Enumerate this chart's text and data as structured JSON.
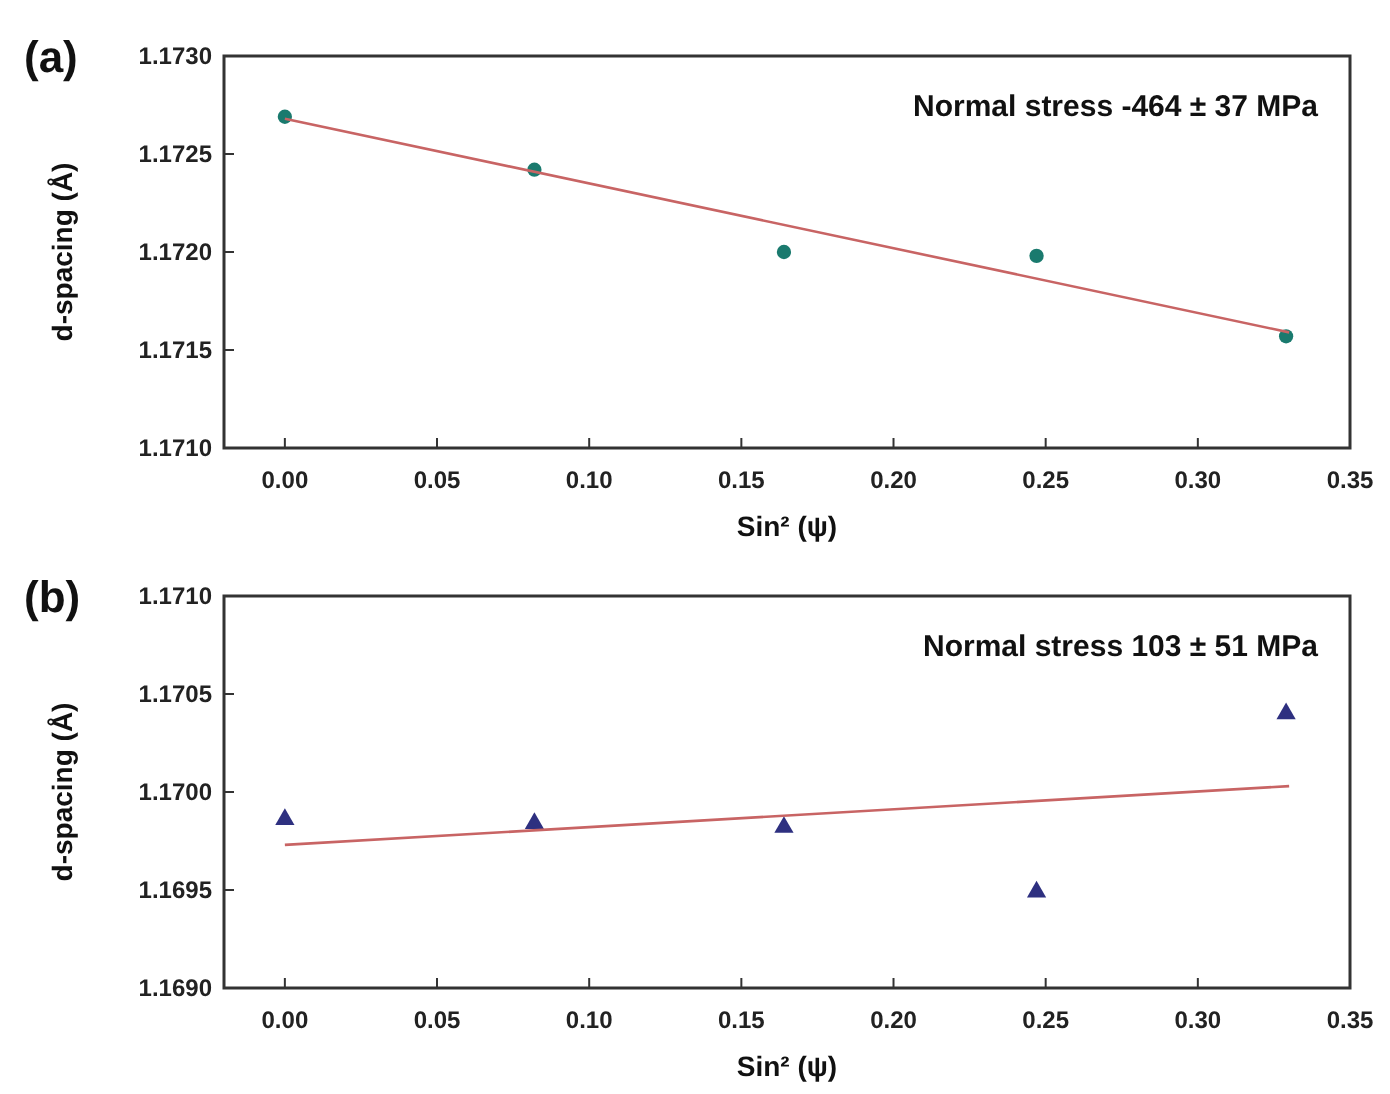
{
  "chart_data": [
    {
      "type": "scatter",
      "title": "(a)",
      "xlabel": "Sin² (ψ)",
      "ylabel": "d-spacing (Å)",
      "annotations": [
        "Normal stress -464 ± 37 MPa"
      ],
      "xlim": [
        -0.02,
        0.35
      ],
      "xticks": [
        {
          "value": 0,
          "label": "0.00"
        },
        {
          "value": 0.05,
          "label": "0.05"
        },
        {
          "value": 0.1,
          "label": "0.10"
        },
        {
          "value": 0.15,
          "label": "0.15"
        },
        {
          "value": 0.2,
          "label": "0.20"
        },
        {
          "value": 0.25,
          "label": "0.25"
        },
        {
          "value": 0.3,
          "label": "0.30"
        },
        {
          "value": 0.35,
          "label": "0.35"
        }
      ],
      "ylim": [
        1.171,
        1.173
      ],
      "yticks": [
        {
          "value": 1.171,
          "label": "1.1710"
        },
        {
          "value": 1.1715,
          "label": "1.1715"
        },
        {
          "value": 1.172,
          "label": "1.1720"
        },
        {
          "value": 1.1725,
          "label": "1.1725"
        },
        {
          "value": 1.173,
          "label": "1.1730"
        }
      ],
      "grid": false,
      "series": [
        {
          "type": "scatter",
          "marker": "circle",
          "color": "#1a7a6e",
          "x": [
            0,
            0.082,
            0.164,
            0.247,
            0.329
          ],
          "values": [
            1.17269,
            1.17242,
            1.172,
            1.17198,
            1.17157
          ]
        },
        {
          "type": "line",
          "marker": "none",
          "line_style": "solid",
          "color": "#c86464",
          "x": [
            0,
            0.33
          ],
          "values": [
            1.17268,
            1.17159
          ]
        }
      ]
    },
    {
      "type": "scatter",
      "title": "(b)",
      "xlabel": "Sin² (ψ)",
      "ylabel": "d-spacing (Å)",
      "annotations": [
        "Normal stress 103 ± 51 MPa"
      ],
      "xlim": [
        -0.02,
        0.35
      ],
      "xticks": [
        {
          "value": 0,
          "label": "0.00"
        },
        {
          "value": 0.05,
          "label": "0.05"
        },
        {
          "value": 0.1,
          "label": "0.10"
        },
        {
          "value": 0.15,
          "label": "0.15"
        },
        {
          "value": 0.2,
          "label": "0.20"
        },
        {
          "value": 0.25,
          "label": "0.25"
        },
        {
          "value": 0.3,
          "label": "0.30"
        },
        {
          "value": 0.35,
          "label": "0.35"
        }
      ],
      "ylim": [
        1.169,
        1.171
      ],
      "yticks": [
        {
          "value": 1.169,
          "label": "1.1690"
        },
        {
          "value": 1.1695,
          "label": "1.1695"
        },
        {
          "value": 1.17,
          "label": "1.1700"
        },
        {
          "value": 1.1705,
          "label": "1.1705"
        },
        {
          "value": 1.171,
          "label": "1.1710"
        }
      ],
      "grid": false,
      "series": [
        {
          "type": "scatter",
          "marker": "triangle",
          "color": "#2e3080",
          "x": [
            0,
            0.082,
            0.164,
            0.247,
            0.329
          ],
          "values": [
            1.16986,
            1.16984,
            1.16982,
            1.16949,
            1.1704
          ]
        },
        {
          "type": "line",
          "marker": "none",
          "line_style": "solid",
          "color": "#c86464",
          "x": [
            0,
            0.33
          ],
          "values": [
            1.16973,
            1.17003
          ]
        }
      ]
    }
  ]
}
